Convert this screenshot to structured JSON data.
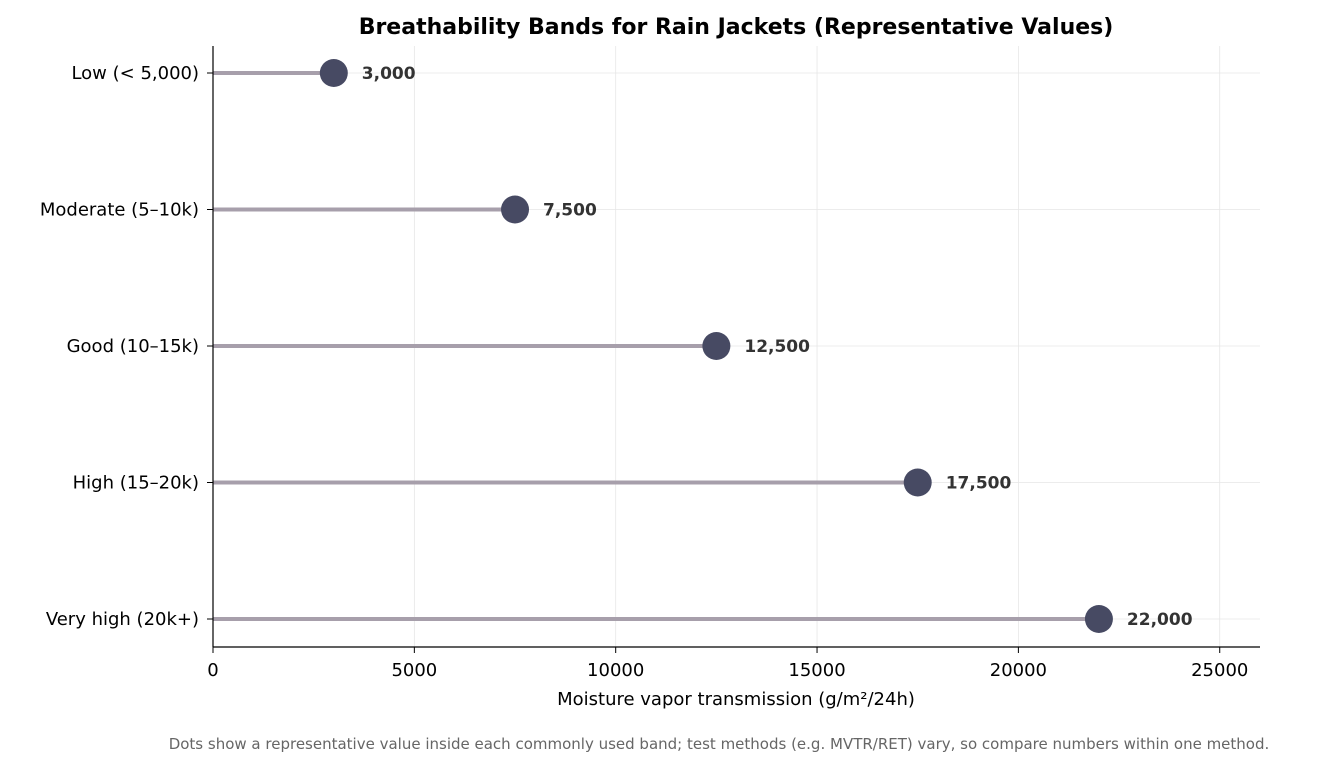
{
  "chart_data": {
    "type": "lollipop",
    "title": "Breathability Bands for Rain Jackets (Representative Values)",
    "xlabel": "Moisture vapor transmission (g/m²/24h)",
    "ylabel": "",
    "xlim": [
      0,
      26000
    ],
    "x_ticks": [
      0,
      5000,
      10000,
      15000,
      20000,
      25000
    ],
    "x_tick_labels": [
      "0",
      "5000",
      "10000",
      "15000",
      "20000",
      "25000"
    ],
    "categories": [
      "Low (< 5,000)",
      "Moderate (5–10k)",
      "Good (10–15k)",
      "High (15–20k)",
      "Very high (20k+)"
    ],
    "values": [
      3000,
      7500,
      12500,
      17500,
      22000
    ],
    "value_labels": [
      "3,000",
      "7,500",
      "12,500",
      "17,500",
      "22,000"
    ],
    "grid": true,
    "legend": "none",
    "footnote": "Dots show a representative value inside each commonly used band; test methods (e.g. MVTR/RET) vary, so compare numbers within one method.",
    "colors": {
      "stem": "#a79fab",
      "dot": "#474a63",
      "grid": "#e6e6e6",
      "axis": "#000000",
      "value_label": "#333333",
      "footnote": "#666666"
    }
  }
}
